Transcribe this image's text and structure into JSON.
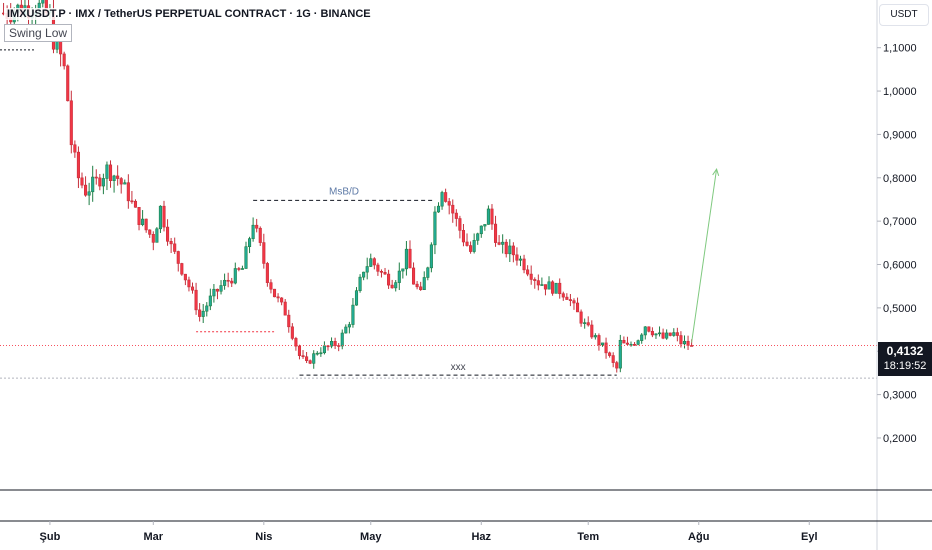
{
  "header": {
    "title": "IMXUSDT.P · IMX / TetherUS PERPETUAL CONTRACT · 1G · BINANCE",
    "currency_button": "USDT"
  },
  "annotations": {
    "swing_low": "Swing Low",
    "msb_label": "MsB/D",
    "range_label": "xxx"
  },
  "price_label": {
    "price": "0,4132",
    "countdown": "18:19:52"
  },
  "colors": {
    "up": "#22ab94",
    "down": "#f23645",
    "up_body": "#1e7e45",
    "down_body": "#c62f3b",
    "projection": "#7fc97f",
    "last_price_line": "#f7525f",
    "grid_line": "#b2b5be"
  },
  "chart_data": {
    "type": "candlestick",
    "title": "IMXUSDT.P · IMX / TetherUS PERPETUAL CONTRACT · 1G · BINANCE",
    "timeframe": "1G",
    "y_scale": "linear",
    "ylim": [
      0.08,
      1.21
    ],
    "y_ticks": [
      1.1,
      1.0,
      0.9,
      0.8,
      0.7,
      0.6,
      0.5,
      0.4,
      0.3,
      0.2
    ],
    "y_tick_labels": [
      "1,1000",
      "1,0000",
      "0,9000",
      "0,8000",
      "0,7000",
      "0,6000",
      "0,5000",
      "0,4000",
      "0,3000",
      "0,2000"
    ],
    "x_months": [
      {
        "label": "Şub",
        "day": 0
      },
      {
        "label": "Mar",
        "day": 29
      },
      {
        "label": "Nis",
        "day": 60
      },
      {
        "label": "May",
        "day": 90
      },
      {
        "label": "Haz",
        "day": 121
      },
      {
        "label": "Tem",
        "day": 151
      },
      {
        "label": "Ağu",
        "day": 182
      },
      {
        "label": "Eyl",
        "day": 213
      }
    ],
    "first_day": -14,
    "last_day": 232,
    "last_price": 0.4132,
    "price_path": [
      [
        -13,
        1.18
      ],
      [
        -4,
        1.2
      ],
      [
        0,
        1.17
      ],
      [
        1,
        1.12
      ],
      [
        3,
        1.08
      ],
      [
        4,
        1.05
      ],
      [
        5,
        0.98
      ],
      [
        6,
        0.88
      ],
      [
        8,
        0.8
      ],
      [
        10,
        0.77
      ],
      [
        13,
        0.79
      ],
      [
        16,
        0.82
      ],
      [
        19,
        0.8
      ],
      [
        22,
        0.76
      ],
      [
        24,
        0.72
      ],
      [
        27,
        0.68
      ],
      [
        29,
        0.66
      ],
      [
        31,
        0.73
      ],
      [
        34,
        0.64
      ],
      [
        37,
        0.59
      ],
      [
        40,
        0.53
      ],
      [
        42,
        0.48
      ],
      [
        45,
        0.52
      ],
      [
        48,
        0.55
      ],
      [
        51,
        0.57
      ],
      [
        54,
        0.59
      ],
      [
        57,
        0.7
      ],
      [
        59,
        0.64
      ],
      [
        61,
        0.57
      ],
      [
        63,
        0.53
      ],
      [
        66,
        0.49
      ],
      [
        68,
        0.44
      ],
      [
        70,
        0.39
      ],
      [
        72,
        0.37
      ],
      [
        75,
        0.4
      ],
      [
        78,
        0.41
      ],
      [
        81,
        0.42
      ],
      [
        84,
        0.47
      ],
      [
        86,
        0.53
      ],
      [
        88,
        0.59
      ],
      [
        90,
        0.61
      ],
      [
        93,
        0.58
      ],
      [
        96,
        0.56
      ],
      [
        98,
        0.58
      ],
      [
        100,
        0.62
      ],
      [
        102,
        0.56
      ],
      [
        104,
        0.53
      ],
      [
        106,
        0.6
      ],
      [
        108,
        0.72
      ],
      [
        110,
        0.78
      ],
      [
        112,
        0.74
      ],
      [
        114,
        0.7
      ],
      [
        116,
        0.66
      ],
      [
        118,
        0.63
      ],
      [
        121,
        0.68
      ],
      [
        123,
        0.72
      ],
      [
        126,
        0.64
      ],
      [
        129,
        0.63
      ],
      [
        131,
        0.62
      ],
      [
        134,
        0.59
      ],
      [
        137,
        0.56
      ],
      [
        140,
        0.55
      ],
      [
        143,
        0.54
      ],
      [
        145,
        0.53
      ],
      [
        147,
        0.5
      ],
      [
        150,
        0.46
      ],
      [
        153,
        0.43
      ],
      [
        156,
        0.4
      ],
      [
        158,
        0.37
      ],
      [
        159,
        0.36
      ],
      [
        160,
        0.42
      ],
      [
        162,
        0.41
      ],
      [
        165,
        0.43
      ],
      [
        167,
        0.46
      ],
      [
        170,
        0.44
      ],
      [
        172,
        0.43
      ],
      [
        175,
        0.44
      ],
      [
        177,
        0.42
      ],
      [
        180,
        0.4132
      ]
    ],
    "annotations": [
      {
        "type": "hline",
        "label": "Swing Low",
        "price": 1.095,
        "from_day": -14,
        "to_day": -4,
        "color": "#131722",
        "style": "dotted"
      },
      {
        "type": "hline",
        "label": "MsB/D",
        "price": 0.748,
        "from_day": 57,
        "to_day": 108,
        "color": "#131722",
        "style": "dashed"
      },
      {
        "type": "hline",
        "label": "",
        "price": 0.445,
        "from_day": 41,
        "to_day": 63,
        "color": "#f23645",
        "style": "dotted"
      },
      {
        "type": "hline",
        "label": "xxx",
        "price": 0.345,
        "from_day": 70,
        "to_day": 159,
        "color": "#131722",
        "style": "dashed"
      },
      {
        "type": "hline",
        "label": "",
        "price": 0.338,
        "from_day": -14,
        "to_day": 232,
        "color": "#b2b5be",
        "style": "dotted"
      },
      {
        "type": "arrow",
        "label": "",
        "from": [
          180,
          0.42
        ],
        "to": [
          187,
          0.82
        ],
        "color": "#7fc97f"
      }
    ]
  }
}
